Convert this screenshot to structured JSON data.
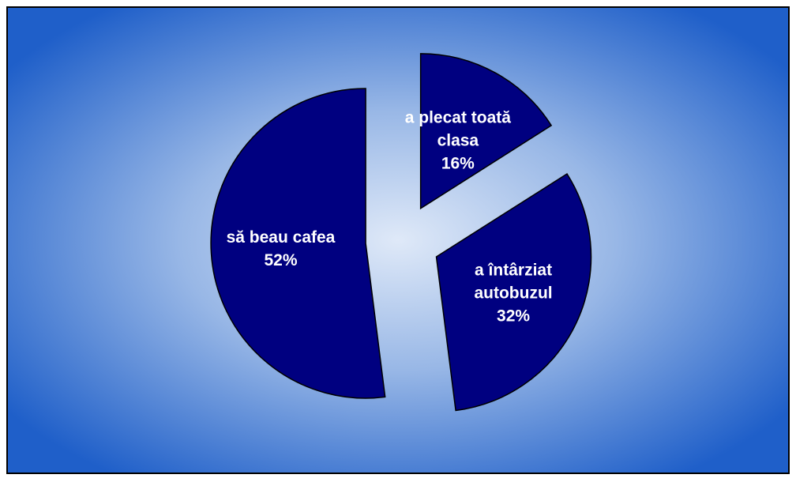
{
  "chart_data": {
    "type": "pie",
    "categories": [
      "a plecat toată clasa",
      "a întârziat autobuzul",
      "să beau cafea"
    ],
    "values": [
      16,
      32,
      52
    ],
    "value_labels": [
      "16%",
      "32%",
      "52%"
    ],
    "color": "#000080"
  }
}
